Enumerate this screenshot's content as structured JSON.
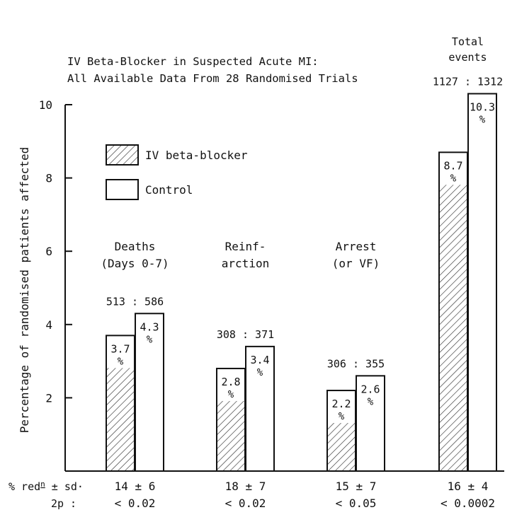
{
  "chart_data": {
    "type": "bar",
    "title": "IV Beta-Blocker in Suspected Acute MI:",
    "subtitle": "All Available Data From 28 Randomised Trials",
    "ylabel": "Percentage of randomised patients affected",
    "xlabel": "",
    "ylim": [
      0,
      10
    ],
    "yticks": [
      2,
      4,
      6,
      8,
      10
    ],
    "grid": false,
    "legend_position": "top-left",
    "series": [
      {
        "name": "IV beta-blocker",
        "pattern": "hatched",
        "values": [
          3.7,
          2.8,
          2.2,
          8.7
        ]
      },
      {
        "name": "Control",
        "pattern": "open",
        "values": [
          4.3,
          3.4,
          2.6,
          10.3
        ]
      }
    ],
    "groups": [
      {
        "label_lines": [
          "Deaths",
          "(Days 0-7)"
        ],
        "counts": "513 : 586",
        "value_labels": [
          "3.7",
          "4.3"
        ],
        "reduction": "14 ± 6",
        "p": "< 0.02"
      },
      {
        "label_lines": [
          "Reinf-",
          "arction"
        ],
        "counts": "308 : 371",
        "value_labels": [
          "2.8",
          "3.4"
        ],
        "reduction": "18  ± 7",
        "p": "< 0.02"
      },
      {
        "label_lines": [
          "Arrest",
          "(or VF)"
        ],
        "counts": "306 : 355",
        "value_labels": [
          "2.2",
          "2.6"
        ],
        "reduction": "15 ± 7",
        "p": "< 0.05"
      },
      {
        "label_lines": [
          "Total",
          "events"
        ],
        "counts": "1127 : 1312",
        "value_labels": [
          "8.7",
          "10.3"
        ],
        "reduction": "16 ± 4",
        "p": "< 0.0002"
      }
    ],
    "percent_sign": "%",
    "row_labels": {
      "reduction_prefix": "% red",
      "reduction_sup": "n",
      "reduction_suffix": " ± sd·",
      "p": "2p :"
    }
  }
}
